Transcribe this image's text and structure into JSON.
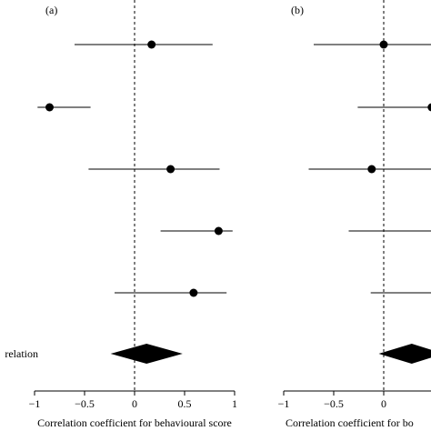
{
  "chart_data": [
    {
      "type": "forest",
      "panel_label": "(a)",
      "xlabel": "Correlation coefficient for behavioural score",
      "xlim": [
        -1,
        1
      ],
      "xticks": [
        -1,
        -0.5,
        0,
        0.5,
        1
      ],
      "xtick_labels": [
        "−1",
        "−0.5",
        "0",
        "0.5",
        "1"
      ],
      "reference_line": 0,
      "studies": [
        {
          "estimate": 0.17,
          "ci": [
            -0.6,
            0.78
          ]
        },
        {
          "estimate": -0.85,
          "ci": [
            -0.97,
            -0.44
          ]
        },
        {
          "estimate": 0.36,
          "ci": [
            -0.46,
            0.85
          ]
        },
        {
          "estimate": 0.84,
          "ci": [
            0.26,
            0.98
          ]
        },
        {
          "estimate": 0.59,
          "ci": [
            -0.2,
            0.92
          ]
        }
      ],
      "pooled": {
        "label": "relation",
        "estimate": 0.12,
        "ci": [
          -0.24,
          0.48
        ]
      }
    },
    {
      "type": "forest",
      "panel_label": "(b)",
      "xlabel": "Correlation coefficient for bo",
      "xlim": [
        -1,
        1
      ],
      "xticks": [
        -1,
        -0.5,
        0
      ],
      "xtick_labels": [
        "−1",
        "−0.5",
        "0"
      ],
      "reference_line": 0,
      "studies": [
        {
          "estimate": 0.0,
          "ci": [
            -0.7,
            1.0
          ]
        },
        {
          "estimate": 0.48,
          "ci": [
            -0.26,
            1.0
          ]
        },
        {
          "estimate": -0.12,
          "ci": [
            -0.75,
            1.0
          ]
        },
        {
          "estimate": null,
          "ci": [
            -0.35,
            1.0
          ]
        },
        {
          "estimate": null,
          "ci": [
            -0.13,
            1.0
          ]
        }
      ],
      "pooled": {
        "estimate": 0.28,
        "ci": [
          -0.05,
          0.6
        ]
      }
    }
  ]
}
